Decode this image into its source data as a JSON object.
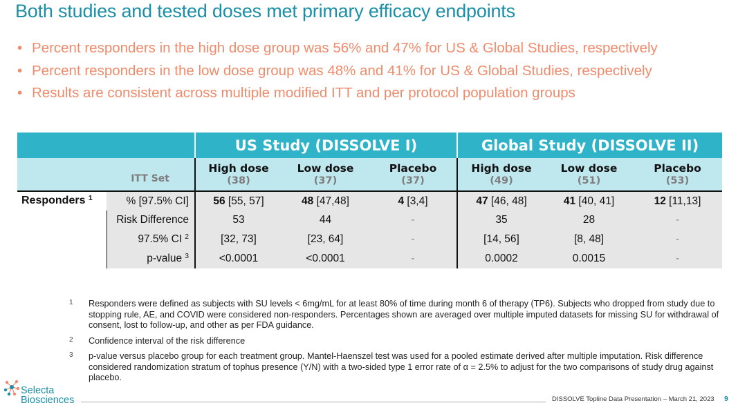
{
  "title": "Both studies and tested doses met primary efficacy endpoints",
  "bullets": [
    "Percent responders in the high dose group was 56% and 47% for US & Global Studies, respectively",
    "Percent responders in the low dose group was 48% and 41% for US & Global Studies, respectively",
    "Results are consistent across multiple modified ITT and per protocol population groups"
  ],
  "bullet_char": "•",
  "table": {
    "group_us": "US Study (DISSOLVE I)",
    "group_global": "Global Study (DISSOLVE II)",
    "itt_label": "ITT Set",
    "columns": [
      {
        "label": "High dose",
        "n": "(38)"
      },
      {
        "label": "Low dose",
        "n": "(37)"
      },
      {
        "label": "Placebo",
        "n": "(37)"
      },
      {
        "label": "High dose",
        "n": "(49)"
      },
      {
        "label": "Low dose",
        "n": "(51)"
      },
      {
        "label": "Placebo",
        "n": "(53)"
      }
    ],
    "row_group_label": "Responders",
    "row_group_sup": "1",
    "rows": [
      {
        "label": "% [97.5% CI]",
        "sup": "",
        "cells": [
          {
            "main": "56",
            "rest": " [55, 57]"
          },
          {
            "main": "48",
            "rest": " [47,48]"
          },
          {
            "main": "4",
            "rest": " [3,4]"
          },
          {
            "main": "47",
            "rest": " [46, 48]"
          },
          {
            "main": "41",
            "rest": " [40, 41]"
          },
          {
            "main": "12",
            "rest": " [11,13]"
          }
        ]
      },
      {
        "label": "Risk Difference",
        "sup": "",
        "cells": [
          "53",
          "44",
          "-",
          "35",
          "28",
          "-"
        ]
      },
      {
        "label": "97.5% CI",
        "sup": "2",
        "cells": [
          "[32, 73]",
          "[23, 64]",
          "-",
          "[14, 56]",
          "[8, 48]",
          "-"
        ]
      },
      {
        "label": "p-value",
        "sup": "3",
        "cells": [
          "<0.0001",
          "<0.0001",
          "-",
          "0.0002",
          "0.0015",
          "-"
        ]
      }
    ]
  },
  "footnotes": [
    {
      "num": "1",
      "text": "Responders were defined as subjects with SU levels < 6mg/mL for at least 80% of time during month 6 of therapy (TP6). Subjects who dropped from study due to stopping rule, AE, and COVID were considered non-responders.  Percentages shown are averaged over multiple imputed datasets for missing SU for withdrawal of consent, lost to follow-up, and other as per FDA guidance."
    },
    {
      "num": "2",
      "text": "Confidence interval of the risk difference"
    },
    {
      "num": "3",
      "text": "p-value versus placebo group for each treatment group. Mantel-Haenszel test was used for a pooled estimate derived after multiple imputation. Risk difference considered randomization stratum of tophus presence (Y/N) with a two-sided type 1 error rate of α = 2.5% to adjust for the two comparisons of study drug against placebo."
    }
  ],
  "footer": {
    "text": "DISSOLVE Topline Data  Presentation – March 21, 2023",
    "page": "9"
  },
  "logo": {
    "line1": "Selecta",
    "line2": "Biosciences",
    "icon": "molecule-logo-icon"
  },
  "colors": {
    "title": "#1a8fa6",
    "bullets": "#f08b6c",
    "header_dark": "#2eb3c9",
    "header_light": "#bfe7ee",
    "row_shade": "#e6e6e6"
  }
}
